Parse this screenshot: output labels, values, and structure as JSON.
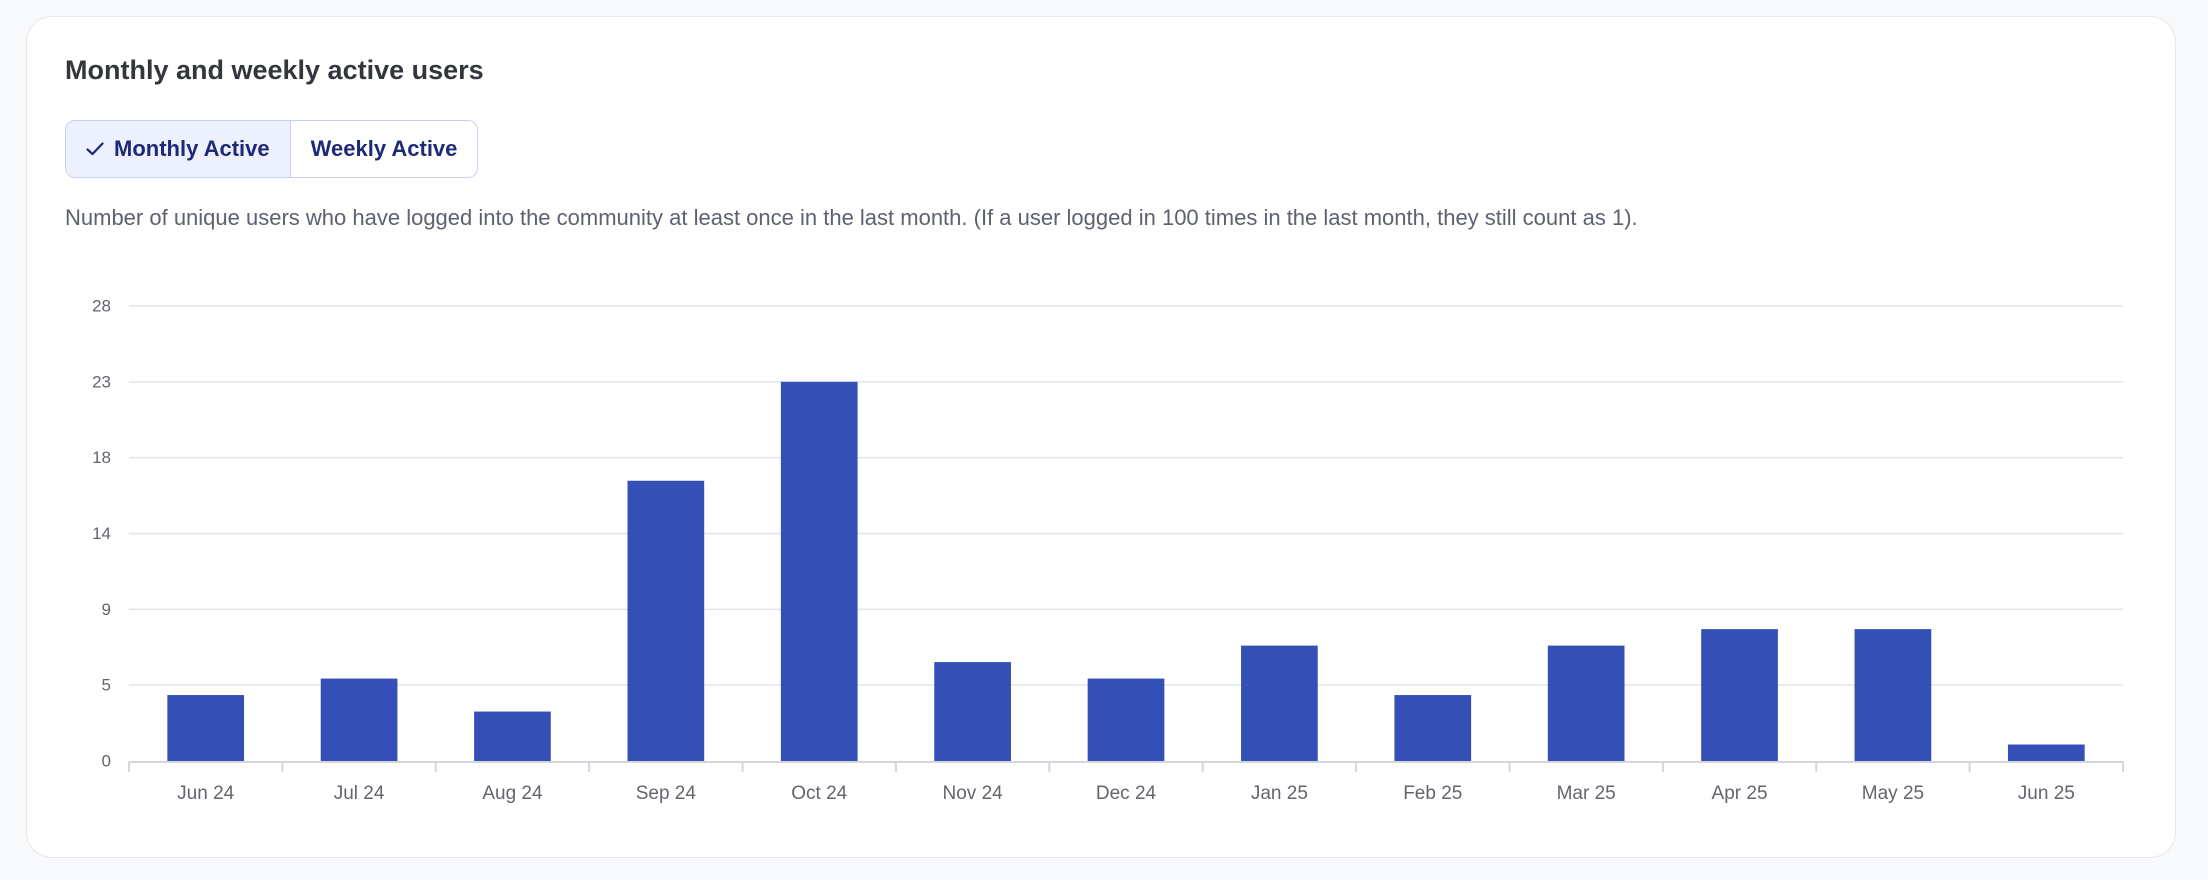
{
  "card": {
    "title": "Monthly and weekly active users",
    "tabs": [
      {
        "label": "Monthly Active",
        "selected": true
      },
      {
        "label": "Weekly Active",
        "selected": false
      }
    ],
    "description": "Number of unique users who have logged into the community at least once in the last month. (If a user logged in 100 times in the last month, they still count as 1)."
  },
  "colors": {
    "bar": "#344fb5",
    "grid": "#e3e4e8",
    "axis_text": "#62656f",
    "accent_text": "#1e2a78"
  },
  "chart_data": {
    "type": "bar",
    "categories": [
      "Jun 24",
      "Jul 24",
      "Aug 24",
      "Sep 24",
      "Oct 24",
      "Nov 24",
      "Dec 24",
      "Jan 25",
      "Feb 25",
      "Mar 25",
      "Apr 25",
      "May 25",
      "Jun 25"
    ],
    "values": [
      4,
      5,
      3,
      17,
      23,
      6,
      5,
      7,
      4,
      7,
      8,
      8,
      1
    ],
    "ylim": [
      0,
      23
    ],
    "yticks": [
      "0",
      "5",
      "9",
      "14",
      "18",
      "23",
      "28"
    ],
    "grid": true,
    "title": "",
    "xlabel": "",
    "ylabel": ""
  }
}
